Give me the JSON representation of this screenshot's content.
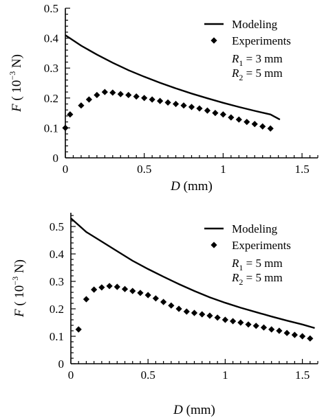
{
  "chart_data": [
    {
      "type": "line",
      "xlabel": {
        "var": "D",
        "unit": " (mm)"
      },
      "ylabel": {
        "var": "F",
        "unit": " ( 10",
        "exp": "−3",
        "tail": " N)"
      },
      "xlim": [
        0,
        1.6
      ],
      "ylim": [
        0,
        0.5
      ],
      "xticks": [
        0,
        0.5,
        1,
        1.5
      ],
      "xtick_labels": [
        "0",
        "0.5",
        "1",
        "1.5"
      ],
      "yticks": [
        0,
        0.1,
        0.2,
        0.3,
        0.4,
        0.5
      ],
      "ytick_labels": [
        "0",
        "0.1",
        "0.2",
        "0.3",
        "0.4",
        "0.5"
      ],
      "grid": false,
      "legend": {
        "position": "top-right",
        "entries": [
          "Modeling",
          "Experiments"
        ],
        "params": [
          {
            "sym": "R",
            "sub": "1",
            "val": " = 3 mm"
          },
          {
            "sym": "R",
            "sub": "2",
            "val": " = 5 mm"
          }
        ]
      },
      "series": [
        {
          "name": "Modeling",
          "kind": "line",
          "x": [
            0,
            0.1,
            0.2,
            0.3,
            0.4,
            0.5,
            0.6,
            0.7,
            0.8,
            0.9,
            1.0,
            1.1,
            1.2,
            1.3,
            1.36
          ],
          "y": [
            0.41,
            0.375,
            0.345,
            0.318,
            0.293,
            0.271,
            0.251,
            0.232,
            0.215,
            0.199,
            0.184,
            0.17,
            0.157,
            0.145,
            0.128
          ]
        },
        {
          "name": "Experiments",
          "kind": "scatter",
          "x": [
            0,
            0.03,
            0.1,
            0.15,
            0.2,
            0.25,
            0.3,
            0.35,
            0.4,
            0.45,
            0.5,
            0.55,
            0.6,
            0.65,
            0.7,
            0.75,
            0.8,
            0.85,
            0.9,
            0.95,
            1.0,
            1.05,
            1.1,
            1.15,
            1.2,
            1.25,
            1.3
          ],
          "y": [
            0.1,
            0.145,
            0.175,
            0.195,
            0.21,
            0.22,
            0.218,
            0.213,
            0.21,
            0.205,
            0.2,
            0.195,
            0.19,
            0.185,
            0.18,
            0.175,
            0.17,
            0.165,
            0.158,
            0.15,
            0.145,
            0.135,
            0.128,
            0.12,
            0.113,
            0.105,
            0.098
          ]
        }
      ]
    },
    {
      "type": "line",
      "xlabel": {
        "var": "D",
        "unit": " (mm)"
      },
      "ylabel": {
        "var": "F",
        "unit": " ( 10",
        "exp": "−3",
        "tail": " N)"
      },
      "xlim": [
        0,
        1.6
      ],
      "ylim": [
        0,
        0.55
      ],
      "xticks": [
        0,
        0.5,
        1,
        1.5
      ],
      "xtick_labels": [
        "0",
        "0.5",
        "1",
        "1.5"
      ],
      "yticks": [
        0,
        0.1,
        0.2,
        0.3,
        0.4,
        0.5
      ],
      "ytick_labels": [
        "0",
        "0.1",
        "0.2",
        "0.3",
        "0.4",
        "0.5"
      ],
      "grid": false,
      "legend": {
        "position": "top-right",
        "entries": [
          "Modeling",
          "Experiments"
        ],
        "params": [
          {
            "sym": "R",
            "sub": "1",
            "val": " = 5 mm"
          },
          {
            "sym": "R",
            "sub": "2",
            "val": " = 5 mm"
          }
        ]
      },
      "series": [
        {
          "name": "Modeling",
          "kind": "line",
          "x": [
            0,
            0.05,
            0.1,
            0.2,
            0.3,
            0.4,
            0.5,
            0.6,
            0.7,
            0.8,
            0.9,
            1.0,
            1.1,
            1.2,
            1.3,
            1.4,
            1.5,
            1.58
          ],
          "y": [
            0.53,
            0.505,
            0.48,
            0.445,
            0.41,
            0.375,
            0.345,
            0.317,
            0.29,
            0.265,
            0.242,
            0.222,
            0.204,
            0.188,
            0.172,
            0.157,
            0.143,
            0.13
          ]
        },
        {
          "name": "Experiments",
          "kind": "scatter",
          "x": [
            0.05,
            0.1,
            0.15,
            0.2,
            0.25,
            0.3,
            0.35,
            0.4,
            0.45,
            0.5,
            0.55,
            0.6,
            0.65,
            0.7,
            0.75,
            0.8,
            0.85,
            0.9,
            0.95,
            1.0,
            1.05,
            1.1,
            1.15,
            1.2,
            1.25,
            1.3,
            1.35,
            1.4,
            1.45,
            1.5,
            1.55
          ],
          "y": [
            0.125,
            0.235,
            0.27,
            0.278,
            0.283,
            0.28,
            0.272,
            0.265,
            0.258,
            0.25,
            0.238,
            0.225,
            0.212,
            0.2,
            0.19,
            0.185,
            0.18,
            0.175,
            0.168,
            0.16,
            0.155,
            0.15,
            0.143,
            0.138,
            0.132,
            0.125,
            0.12,
            0.112,
            0.105,
            0.1,
            0.092
          ]
        }
      ]
    }
  ]
}
